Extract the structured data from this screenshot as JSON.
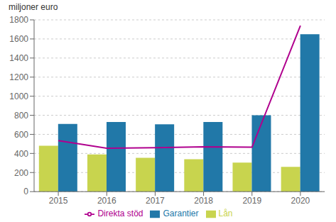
{
  "chart_data": {
    "type": "bar",
    "ylabel": "miljoner euro",
    "categories": [
      "2015",
      "2016",
      "2017",
      "2018",
      "2019",
      "2020"
    ],
    "series": [
      {
        "name": "Lån",
        "color": "#c8d44e",
        "values": [
          480,
          390,
          355,
          340,
          305,
          260
        ]
      },
      {
        "name": "Garantier",
        "color": "#2178a8",
        "values": [
          710,
          730,
          705,
          730,
          800,
          1650
        ]
      },
      {
        "name": "Direkta stöd",
        "type": "line",
        "color": "#b0008e",
        "values": [
          535,
          455,
          460,
          470,
          465,
          1740
        ]
      }
    ],
    "ylim": [
      0,
      1800
    ],
    "yticks": [
      0,
      200,
      400,
      600,
      800,
      1000,
      1200,
      1400,
      1600,
      1800
    ],
    "grid": true,
    "legend": "bottom"
  }
}
